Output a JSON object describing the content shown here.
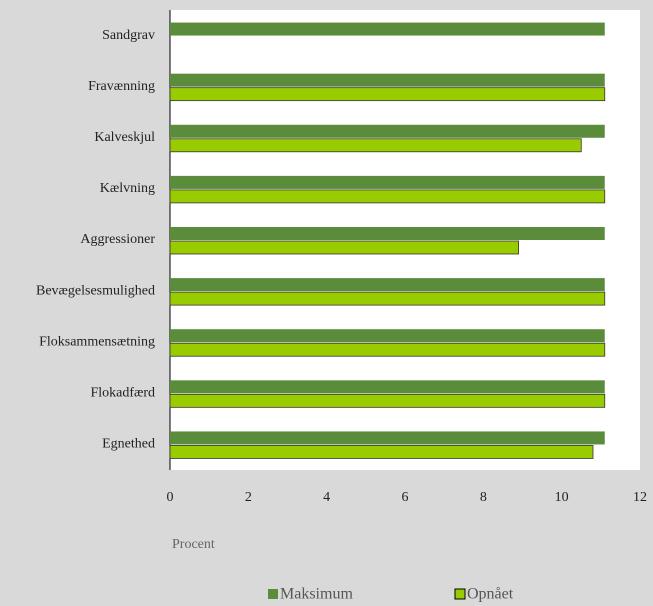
{
  "chart_data": {
    "type": "hbar",
    "x_label": "Procent",
    "categories": [
      "Sandgrav",
      "Fravænning",
      "Kalveskjul",
      "Kælvning",
      "Aggressioner",
      "Bevægelsesmulighed",
      "Floksammensætning",
      "Flokadfærd",
      "Egnethed"
    ],
    "series": [
      {
        "name": "Maksimum",
        "color": "#5b8c3c",
        "values": [
          11.1,
          11.1,
          11.1,
          11.1,
          11.1,
          11.1,
          11.1,
          11.1,
          11.1
        ]
      },
      {
        "name": "Opnået",
        "color": "#99cc00",
        "values": [
          null,
          11.1,
          10.5,
          11.1,
          8.9,
          11.1,
          11.1,
          11.1,
          10.8
        ]
      }
    ],
    "xlim": [
      0,
      12
    ],
    "xticks": [
      0,
      2,
      4,
      6,
      8,
      10,
      12
    ],
    "legend": "bottom"
  }
}
